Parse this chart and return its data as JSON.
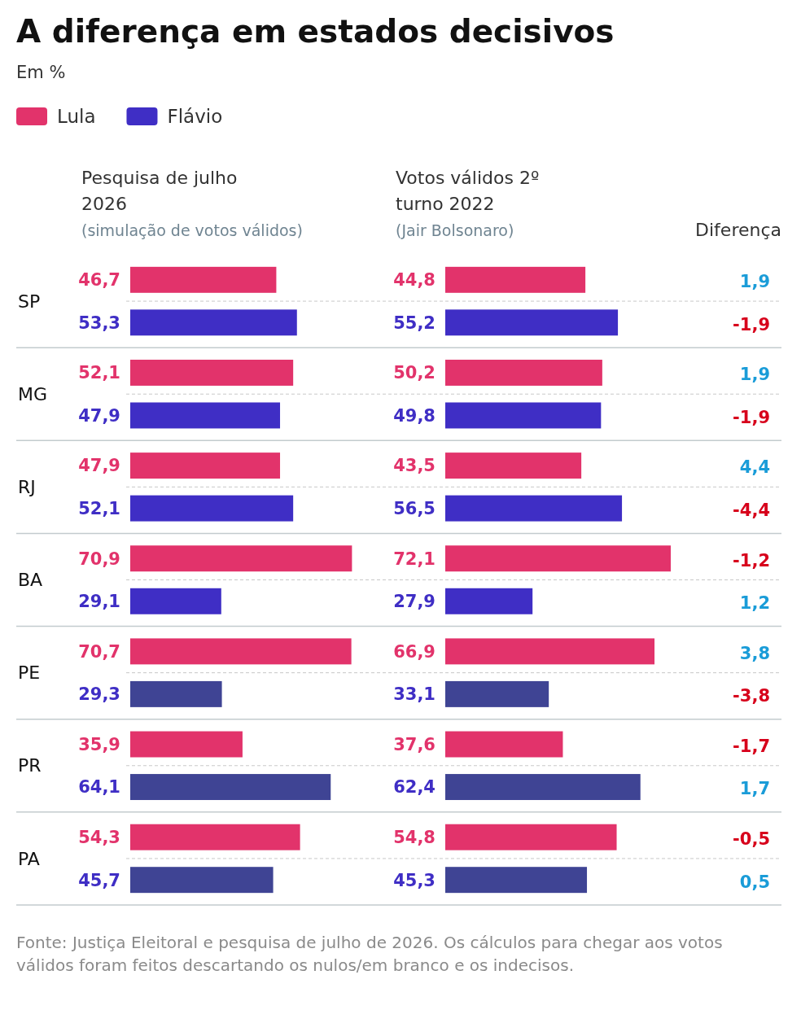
{
  "chart_data": [
    {
      "type": "other",
      "title": "A diferença em estados decisivos",
      "subtitle": "Em %",
      "annotations": [
        "Fonte: Justiça Eleitoral e pesquisa de julho de 2026. Os cálculos para chegar aos votos válidos foram feitos descartando os nulos/em branco e os indecisos."
      ]
    },
    {
      "type": "bar",
      "orientation": "horizontal",
      "title": "Pesquisa de julho 2026",
      "subtitle": "(simulação de votos válidos)",
      "categories": [
        "SP",
        "MG",
        "RJ",
        "BA",
        "PE",
        "PR",
        "PA"
      ],
      "series": [
        {
          "name": "Lula",
          "color": "#e2336b",
          "values": [
            46.7,
            52.1,
            47.9,
            70.9,
            70.7,
            35.9,
            54.3
          ],
          "value_labels": [
            "46,7",
            "52,1",
            "47,9",
            "70,9",
            "70,7",
            "35,9",
            "54,3"
          ]
        },
        {
          "name": "Flávio",
          "color": "#3f2ec5",
          "colors": [
            "#3f2ec5",
            "#3f2ec5",
            "#3f2ec5",
            "#3f2ec5",
            "#3f4494",
            "#3f4494",
            "#3f4494"
          ],
          "values": [
            53.3,
            47.9,
            52.1,
            29.1,
            29.3,
            64.1,
            45.7
          ],
          "value_labels": [
            "53,3",
            "47,9",
            "52,1",
            "29,1",
            "29,3",
            "64,1",
            "45,7"
          ]
        }
      ],
      "legend": "top left",
      "grid": "y"
    },
    {
      "type": "bar",
      "orientation": "horizontal",
      "title": "Votos válidos 2º turno 2022",
      "subtitle": "(Jair Bolsonaro)",
      "categories": [
        null,
        null,
        null,
        null,
        null,
        null,
        null
      ],
      "series": [
        {
          "color": "#e2336b",
          "values": [
            44.8,
            50.2,
            43.5,
            72.1,
            66.9,
            37.6,
            54.8
          ],
          "value_labels": [
            "44,8",
            "50,2",
            "43,5",
            "72,1",
            "66,9",
            "37,6",
            "54,8"
          ]
        },
        {
          "color": "#3f2ec5",
          "colors": [
            "#3f2ec5",
            "#3f2ec5",
            "#3f2ec5",
            "#3f2ec5",
            "#3f4494",
            "#3f4494",
            "#3f4494"
          ],
          "values": [
            55.2,
            49.8,
            56.5,
            27.9,
            33.1,
            62.4,
            45.3
          ],
          "value_labels": [
            "55,2",
            "49,8",
            "56,5",
            "27,9",
            "33,1",
            "62,4",
            "45,3"
          ]
        }
      ],
      "grid": "y"
    },
    {
      "type": "other",
      "title": "Diferença",
      "annotations": [
        "1,9",
        "-1,9",
        "1,9",
        "-1,9",
        "4,4",
        "-4,4",
        "-1,2",
        "1,2",
        "3,8",
        "-3,8",
        "-1,7",
        "1,7",
        "-0,5",
        "0,5"
      ],
      "colors": [
        "#1a9cd8",
        "#d7001b",
        "#1a9cd8",
        "#d7001b",
        "#1a9cd8",
        "#d7001b",
        "#d7001b",
        "#1a9cd8",
        "#1a9cd8",
        "#d7001b",
        "#d7001b",
        "#1a9cd8",
        "#d7001b",
        "#1a9cd8"
      ]
    }
  ]
}
